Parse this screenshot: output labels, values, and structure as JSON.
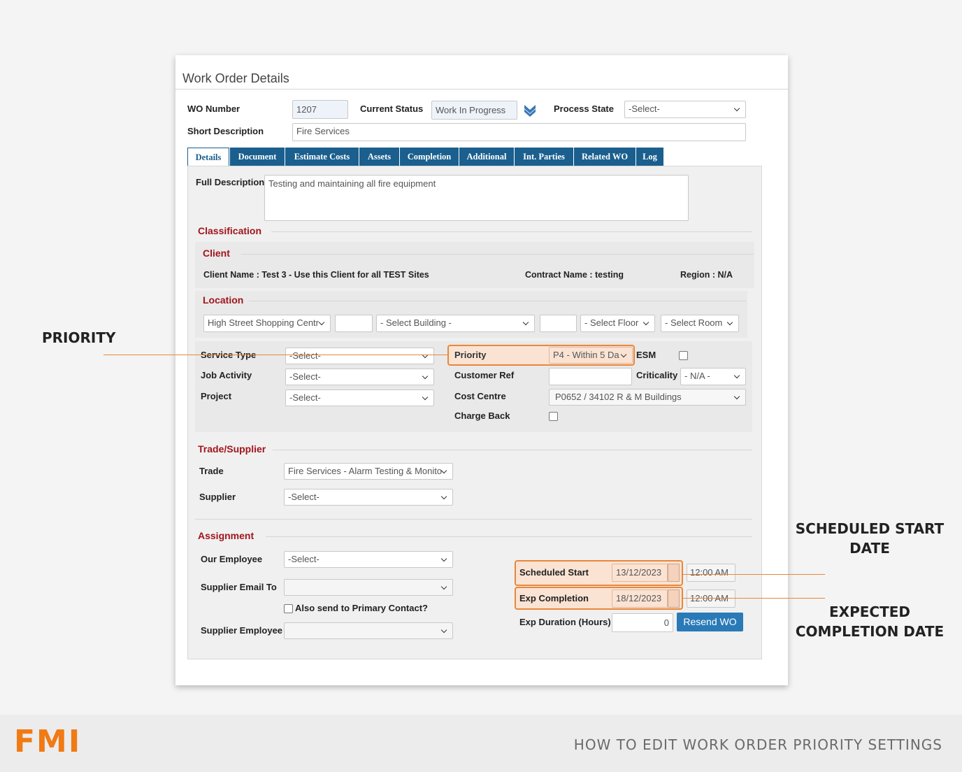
{
  "panel": {
    "title": "Work Order Details"
  },
  "header": {
    "wo_number": {
      "label": "WO Number",
      "value": "1207"
    },
    "current_status": {
      "label": "Current Status",
      "value": "Work In Progress"
    },
    "process_state": {
      "label": "Process State",
      "value": "-Select-"
    },
    "short_description": {
      "label": "Short Description",
      "value": "Fire Services"
    }
  },
  "tabs": [
    "Details",
    "Document",
    "Estimate Costs",
    "Assets",
    "Completion",
    "Additional",
    "Int. Parties",
    "Related WO",
    "Log"
  ],
  "details": {
    "full_description": {
      "label": "Full Description",
      "value": "Testing and maintaining all fire equipment"
    },
    "classification": {
      "heading": "Classification",
      "client": {
        "heading": "Client",
        "client_name": "Client Name : Test 3 - Use this Client for all TEST Sites",
        "contract_name": "Contract Name : testing",
        "region": "Region : N/A"
      },
      "location": {
        "heading": "Location",
        "site": "High Street Shopping Centr",
        "building": "- Select Building -",
        "floor": "- Select Floor",
        "room": "- Select Room"
      },
      "service_type": {
        "label": "Service Type",
        "value": "-Select-"
      },
      "job_activity": {
        "label": "Job Activity",
        "value": "-Select-"
      },
      "project": {
        "label": "Project",
        "value": "-Select-"
      },
      "priority": {
        "label": "Priority",
        "value": "P4 - Within 5 Da"
      },
      "esm": {
        "label": "ESM"
      },
      "customer_ref": {
        "label": "Customer Ref"
      },
      "criticality": {
        "label": "Criticality",
        "value": "- N/A -"
      },
      "cost_centre": {
        "label": "Cost Centre",
        "value": "P0652 / 34102 R & M Buildings"
      },
      "charge_back": {
        "label": "Charge Back"
      }
    },
    "trade_supplier": {
      "heading": "Trade/Supplier",
      "trade": {
        "label": "Trade",
        "value": "Fire Services - Alarm Testing & Monito"
      },
      "supplier": {
        "label": "Supplier",
        "value": "-Select-"
      }
    },
    "assignment": {
      "heading": "Assignment",
      "our_employee": {
        "label": "Our Employee",
        "value": "-Select-"
      },
      "supplier_email_to": {
        "label": "Supplier Email To"
      },
      "also_send": "Also send to Primary Contact?",
      "supplier_employee": {
        "label": "Supplier Employee"
      },
      "scheduled_start": {
        "label": "Scheduled Start",
        "date": "13/12/2023",
        "time": "12:00 AM"
      },
      "exp_completion": {
        "label": "Exp Completion",
        "date": "18/12/2023",
        "time": "12:00 AM"
      },
      "exp_duration": {
        "label": "Exp Duration (Hours)",
        "value": "0"
      },
      "resend_button": "Resend WO"
    }
  },
  "annotations": {
    "priority": "PRIORITY",
    "scheduled_start": "SCHEDULED START DATE",
    "expected_completion": "EXPECTED COMPLETION DATE"
  },
  "footer": {
    "logo": "FMI",
    "title": "HOW TO EDIT WORK ORDER PRIORITY SETTINGS"
  }
}
